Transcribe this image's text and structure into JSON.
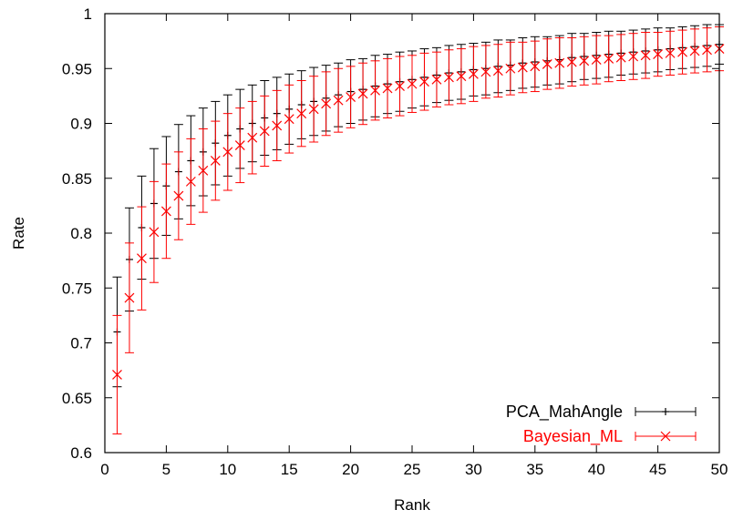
{
  "chart_data": {
    "type": "scatter",
    "xlabel": "Rank",
    "ylabel": "Rate",
    "xlim": [
      0,
      50
    ],
    "ylim": [
      0.6,
      1.0
    ],
    "xticks": [
      "0",
      "5",
      "10",
      "15",
      "20",
      "25",
      "30",
      "35",
      "40",
      "45",
      "50"
    ],
    "yticks": [
      "0.6",
      "0.65",
      "0.7",
      "0.75",
      "0.8",
      "0.85",
      "0.9",
      "0.95",
      "1"
    ],
    "grid": false,
    "legend_position": "bottom-right",
    "series": [
      {
        "name": "PCA_MahAngle",
        "color": "#000000",
        "marker": "plus",
        "x": [
          1,
          2,
          3,
          4,
          5,
          6,
          7,
          8,
          9,
          10,
          11,
          12,
          13,
          14,
          15,
          16,
          17,
          18,
          19,
          20,
          21,
          22,
          23,
          24,
          25,
          26,
          27,
          28,
          29,
          30,
          31,
          32,
          33,
          34,
          35,
          36,
          37,
          38,
          39,
          40,
          41,
          42,
          43,
          44,
          45,
          46,
          47,
          48,
          49,
          50
        ],
        "y": [
          0.71,
          0.776,
          0.805,
          0.827,
          0.843,
          0.856,
          0.866,
          0.874,
          0.882,
          0.889,
          0.895,
          0.9,
          0.905,
          0.909,
          0.913,
          0.917,
          0.92,
          0.923,
          0.926,
          0.929,
          0.931,
          0.934,
          0.936,
          0.938,
          0.94,
          0.942,
          0.944,
          0.946,
          0.947,
          0.949,
          0.95,
          0.952,
          0.953,
          0.955,
          0.956,
          0.957,
          0.958,
          0.96,
          0.961,
          0.962,
          0.963,
          0.964,
          0.965,
          0.966,
          0.967,
          0.968,
          0.969,
          0.97,
          0.971,
          0.972
        ],
        "err": [
          0.05,
          0.047,
          0.047,
          0.05,
          0.045,
          0.043,
          0.041,
          0.04,
          0.038,
          0.037,
          0.036,
          0.035,
          0.034,
          0.033,
          0.032,
          0.031,
          0.031,
          0.03,
          0.029,
          0.029,
          0.028,
          0.028,
          0.027,
          0.027,
          0.026,
          0.026,
          0.025,
          0.025,
          0.025,
          0.024,
          0.024,
          0.024,
          0.023,
          0.023,
          0.023,
          0.022,
          0.022,
          0.022,
          0.021,
          0.021,
          0.021,
          0.02,
          0.02,
          0.02,
          0.02,
          0.019,
          0.019,
          0.019,
          0.019,
          0.018
        ]
      },
      {
        "name": "Bayesian_ML",
        "color": "#ff0000",
        "marker": "cross",
        "x": [
          1,
          2,
          3,
          4,
          5,
          6,
          7,
          8,
          9,
          10,
          11,
          12,
          13,
          14,
          15,
          16,
          17,
          18,
          19,
          20,
          21,
          22,
          23,
          24,
          25,
          26,
          27,
          28,
          29,
          30,
          31,
          32,
          33,
          34,
          35,
          36,
          37,
          38,
          39,
          40,
          41,
          42,
          43,
          44,
          45,
          46,
          47,
          48,
          49,
          50
        ],
        "y": [
          0.671,
          0.741,
          0.777,
          0.801,
          0.82,
          0.834,
          0.847,
          0.857,
          0.866,
          0.874,
          0.88,
          0.887,
          0.893,
          0.898,
          0.904,
          0.909,
          0.913,
          0.918,
          0.921,
          0.924,
          0.927,
          0.93,
          0.932,
          0.934,
          0.936,
          0.938,
          0.94,
          0.942,
          0.943,
          0.945,
          0.947,
          0.948,
          0.95,
          0.951,
          0.952,
          0.954,
          0.955,
          0.956,
          0.957,
          0.958,
          0.959,
          0.96,
          0.961,
          0.962,
          0.963,
          0.964,
          0.965,
          0.966,
          0.967,
          0.968
        ],
        "err": [
          0.054,
          0.05,
          0.047,
          0.046,
          0.043,
          0.04,
          0.039,
          0.038,
          0.036,
          0.035,
          0.034,
          0.033,
          0.032,
          0.032,
          0.031,
          0.03,
          0.03,
          0.029,
          0.029,
          0.028,
          0.028,
          0.027,
          0.027,
          0.027,
          0.026,
          0.026,
          0.025,
          0.025,
          0.025,
          0.025,
          0.024,
          0.024,
          0.024,
          0.023,
          0.023,
          0.023,
          0.023,
          0.022,
          0.022,
          0.022,
          0.021,
          0.021,
          0.021,
          0.021,
          0.02,
          0.02,
          0.02,
          0.02,
          0.02,
          0.02
        ]
      }
    ]
  }
}
